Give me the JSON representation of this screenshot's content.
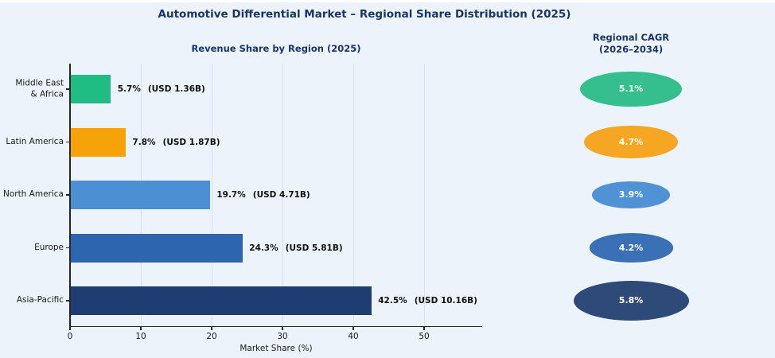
{
  "title": "Automotive Differential Market – Regional Share Distribution (2025)",
  "left_chart": {
    "subtitle": "Revenue Share by Region (2025)",
    "xlabel": "Market Share (%)",
    "x_tick_labels": [
      "0",
      "10",
      "20",
      "30",
      "40",
      "50"
    ]
  },
  "right_panel": {
    "title_line1": "Regional CAGR",
    "title_line2": "(2026–2034)"
  },
  "colors": {
    "background": "#edf3fb",
    "title_navy": "#17356b",
    "gridline": "#d2e2f3",
    "axis": "#262626"
  },
  "regions": [
    {
      "label": "Middle East & Africa",
      "label_lines": [
        "Middle East",
        "& Africa"
      ],
      "share": 5.7,
      "share_label": "5.7%",
      "usd_label": "(USD 1.36B)",
      "cagr": 5.1,
      "cagr_label": "5.1%",
      "bar_color": "#1fbd84",
      "cagr_color": "#35bf8e"
    },
    {
      "label": "Latin America",
      "label_lines": [
        "Latin America"
      ],
      "share": 7.8,
      "share_label": "7.8%",
      "usd_label": "(USD 1.87B)",
      "cagr": 4.7,
      "cagr_label": "4.7%",
      "bar_color": "#f6a30a",
      "cagr_color": "#f5a623"
    },
    {
      "label": "North America",
      "label_lines": [
        "North America"
      ],
      "share": 19.7,
      "share_label": "19.7%",
      "usd_label": "(USD 4.71B)",
      "cagr": 3.9,
      "cagr_label": "3.9%",
      "bar_color": "#4a90d2",
      "cagr_color": "#4f93d6"
    },
    {
      "label": "Europe",
      "label_lines": [
        "Europe"
      ],
      "share": 24.3,
      "share_label": "24.3%",
      "usd_label": "(USD 5.81B)",
      "cagr": 4.2,
      "cagr_label": "4.2%",
      "bar_color": "#2d66ae",
      "cagr_color": "#3a70b5"
    },
    {
      "label": "Asia-Pacific",
      "label_lines": [
        "Asia-Pacific"
      ],
      "share": 42.5,
      "share_label": "42.5%",
      "usd_label": "(USD 10.16B)",
      "cagr": 5.8,
      "cagr_label": "5.8%",
      "bar_color": "#203d72",
      "cagr_color": "#2e4a78"
    }
  ],
  "chart_data": {
    "type": "bar",
    "orientation": "horizontal",
    "title": "Automotive Differential Market – Regional Share Distribution (2025)",
    "subtitle": "Revenue Share by Region (2025)",
    "xlabel": "Market Share (%)",
    "ylabel": "",
    "xlim": [
      0,
      58
    ],
    "x_ticks": [
      0,
      10,
      20,
      30,
      40,
      50
    ],
    "grid": "vertical-light",
    "categories": [
      "Middle East & Africa",
      "Latin America",
      "North America",
      "Europe",
      "Asia-Pacific"
    ],
    "series": [
      {
        "name": "Market Share 2025 (%)",
        "values": [
          5.7,
          7.8,
          19.7,
          24.3,
          42.5
        ]
      },
      {
        "name": "Revenue 2025 (USD B)",
        "values": [
          1.36,
          1.87,
          4.71,
          5.81,
          10.16
        ]
      },
      {
        "name": "Regional CAGR 2026–2034 (%)",
        "values": [
          5.1,
          4.7,
          3.9,
          4.2,
          5.8
        ]
      }
    ],
    "annotations": [
      "5.7%  (USD 1.36B)",
      "7.8%  (USD 1.87B)",
      "19.7%  (USD 4.71B)",
      "24.3%  (USD 5.81B)",
      "42.5%  (USD 10.16B)"
    ],
    "right_panel_bubbles": [
      "5.1%",
      "4.7%",
      "3.9%",
      "4.2%",
      "5.8%"
    ]
  }
}
